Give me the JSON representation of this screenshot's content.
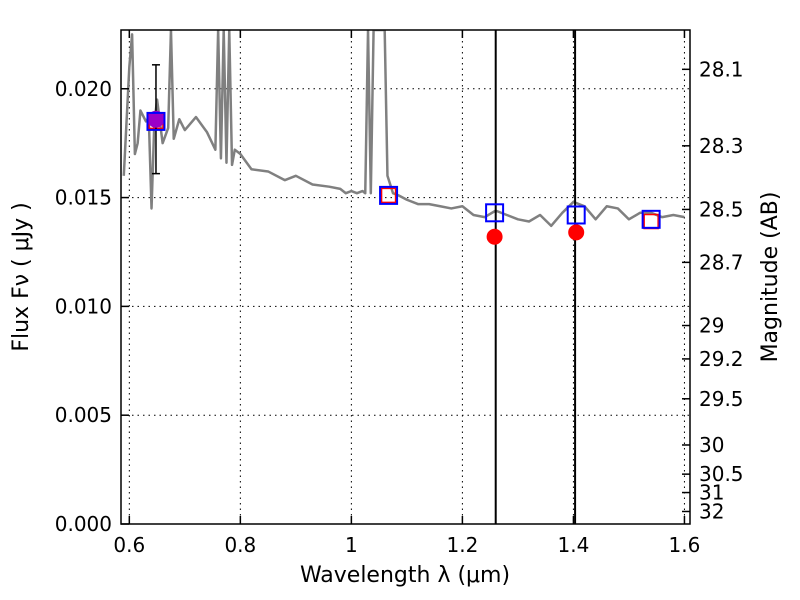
{
  "chart_data": {
    "type": "scatter",
    "xlabel": "Wavelength  λ (μm)",
    "ylabel": "Flux  Fν  ( μJy )",
    "y2label": "Magnitude (AB)",
    "xlim": [
      0.585,
      1.61
    ],
    "ylim": [
      0.0,
      0.0227
    ],
    "grid": true,
    "x_ticks": [
      0.6,
      0.8,
      1.0,
      1.2,
      1.4,
      1.6
    ],
    "x_tick_labels": [
      "0.6",
      "0.8",
      "1",
      "1.2",
      "1.4",
      "1.6"
    ],
    "y_ticks": [
      0.0,
      0.005,
      0.01,
      0.015,
      0.02
    ],
    "y_tick_labels": [
      "0.000",
      "0.005",
      "0.010",
      "0.015",
      "0.020"
    ],
    "y2_ticks": [
      28.1,
      28.3,
      28.5,
      28.7,
      29,
      29.2,
      29.5,
      30,
      30.5,
      31,
      32
    ],
    "y2_tick_labels": [
      "28.1",
      "28.3",
      "28.5",
      "28.7",
      "29",
      "29.2",
      "29.5",
      "30",
      "30.5",
      "31",
      "32"
    ],
    "colors": {
      "model": "#808080",
      "model_photometry": "#0000ff",
      "observed_box": "#ff0000",
      "detection": "#9a00c8",
      "upper_limit": "#ff0000",
      "lines": "#000000"
    },
    "model_spectrum": {
      "x": [
        0.59,
        0.6,
        0.605,
        0.61,
        0.615,
        0.62,
        0.63,
        0.635,
        0.64,
        0.645,
        0.65,
        0.66,
        0.67,
        0.675,
        0.68,
        0.69,
        0.7,
        0.72,
        0.74,
        0.755,
        0.76,
        0.765,
        0.77,
        0.775,
        0.78,
        0.785,
        0.79,
        0.8,
        0.82,
        0.85,
        0.88,
        0.9,
        0.93,
        0.96,
        0.98,
        0.99,
        1.0,
        1.01,
        1.02,
        1.025,
        1.03,
        1.035,
        1.04,
        1.05,
        1.06,
        1.065,
        1.075,
        1.085,
        1.1,
        1.12,
        1.14,
        1.16,
        1.18,
        1.2,
        1.22,
        1.24,
        1.26,
        1.28,
        1.3,
        1.32,
        1.34,
        1.36,
        1.38,
        1.4,
        1.42,
        1.44,
        1.46,
        1.48,
        1.5,
        1.52,
        1.54,
        1.56,
        1.58,
        1.6
      ],
      "y": [
        0.016,
        0.021,
        0.0225,
        0.017,
        0.0175,
        0.019,
        0.0185,
        0.0187,
        0.0145,
        0.0184,
        0.0195,
        0.0175,
        0.0182,
        0.0227,
        0.0177,
        0.0186,
        0.0181,
        0.0187,
        0.018,
        0.0172,
        0.0227,
        0.0168,
        0.0227,
        0.0166,
        0.0227,
        0.0165,
        0.0172,
        0.017,
        0.0163,
        0.0162,
        0.0158,
        0.016,
        0.0156,
        0.0155,
        0.0154,
        0.0152,
        0.0153,
        0.0152,
        0.0153,
        0.0152,
        0.0227,
        0.0152,
        0.0227,
        0.0227,
        0.0227,
        0.016,
        0.0152,
        0.0151,
        0.0149,
        0.0147,
        0.0147,
        0.0146,
        0.0145,
        0.0146,
        0.0142,
        0.0141,
        0.0144,
        0.0142,
        0.014,
        0.0139,
        0.0142,
        0.0137,
        0.0143,
        0.0148,
        0.0146,
        0.014,
        0.0146,
        0.0145,
        0.014,
        0.0143,
        0.0143,
        0.0141,
        0.0142,
        0.0141
      ]
    },
    "series": [
      {
        "x": [
          0.648,
          1.067,
          1.258,
          1.405,
          1.54
        ],
        "y": [
          0.0185,
          0.0151,
          0.0143,
          0.0142,
          0.014
        ]
      },
      {
        "x": [
          0.648,
          1.067,
          1.54
        ],
        "y": [
          0.0185,
          0.0151,
          0.0139
        ]
      },
      {
        "x": [
          0.648
        ],
        "y": [
          0.0186
        ],
        "yerr_low": [
          0.0025
        ],
        "yerr_high": [
          0.0025
        ]
      },
      {
        "x": [
          1.258,
          1.405
        ],
        "y": [
          0.0132,
          0.0134
        ]
      }
    ],
    "vertical_lines": [
      1.26,
      1.403
    ]
  }
}
